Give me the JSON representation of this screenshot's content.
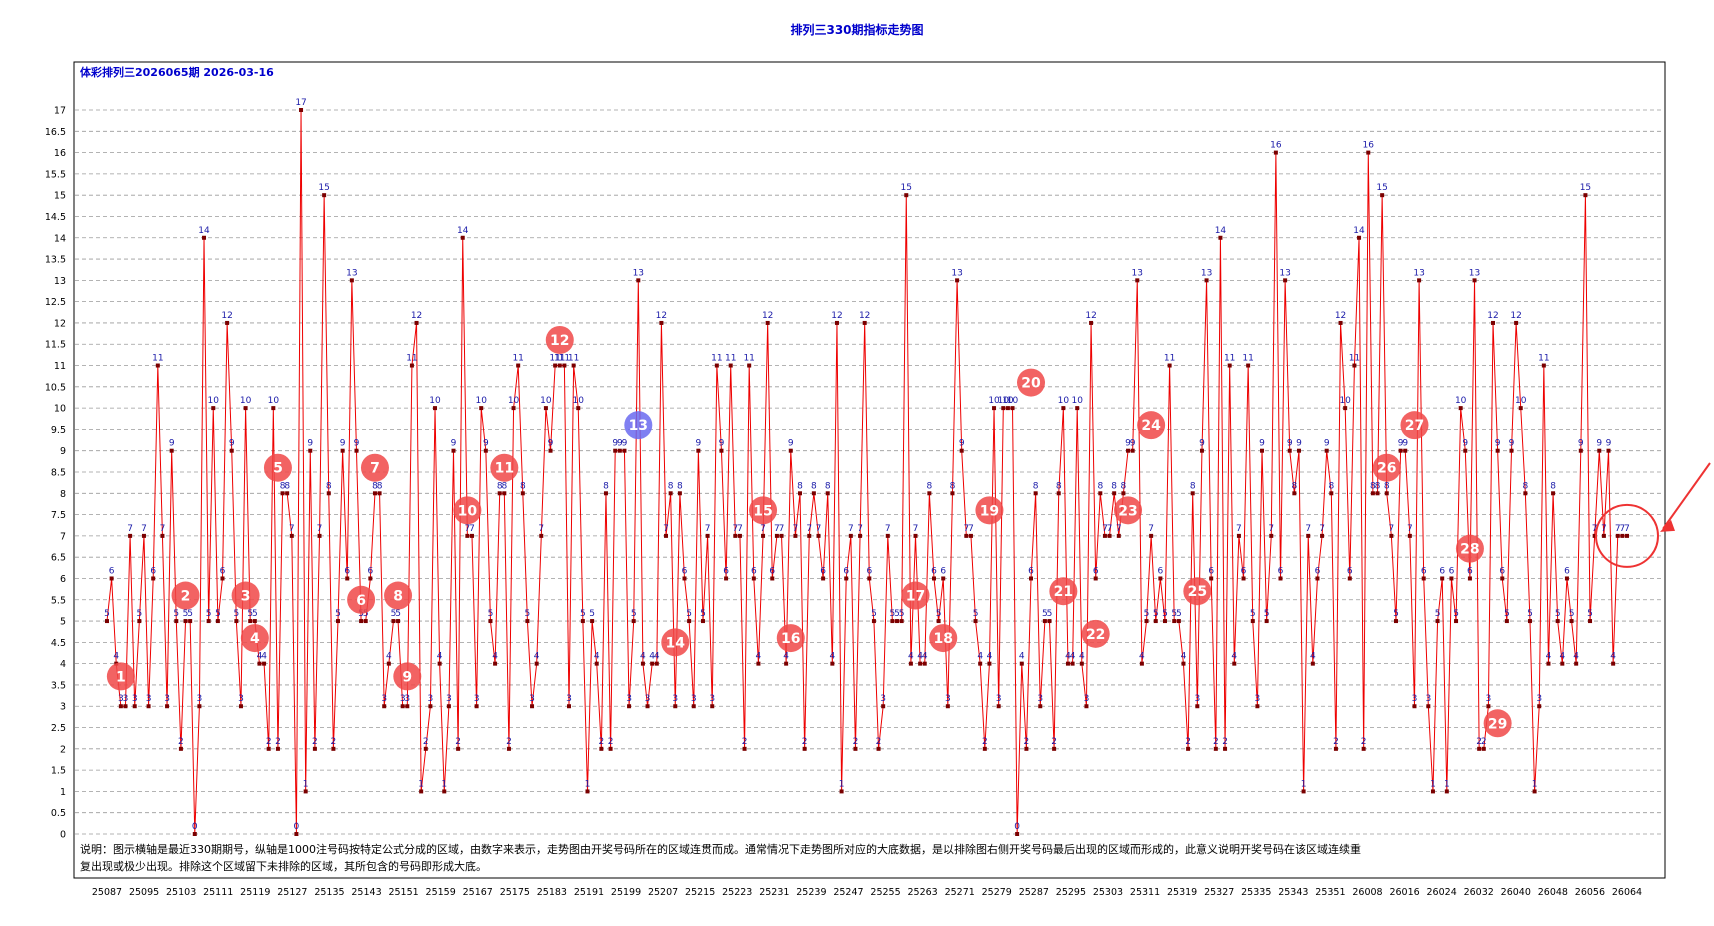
{
  "chart_data": {
    "type": "line",
    "title": "排列三330期指标走势图",
    "subtitle": "体彩排列三2026065期 2026-03-16",
    "ylim": [
      0,
      17
    ],
    "y_ticks": [
      "0",
      "0.5",
      "1",
      "1.5",
      "2",
      "2.5",
      "3",
      "3.5",
      "4",
      "4.5",
      "5",
      "5.5",
      "6",
      "6.5",
      "7",
      "7.5",
      "8",
      "8.5",
      "9",
      "9.5",
      "10",
      "10.5",
      "11",
      "11.5",
      "12",
      "12.5",
      "13",
      "13.5",
      "14",
      "14.5",
      "15",
      "15.5",
      "16",
      "16.5",
      "17"
    ],
    "x_tick_labels": [
      "25087",
      "25095",
      "25103",
      "25111",
      "25119",
      "25127",
      "25135",
      "25143",
      "25151",
      "25159",
      "25167",
      "25175",
      "25183",
      "25191",
      "25199",
      "25207",
      "25215",
      "25223",
      "25231",
      "25239",
      "25247",
      "25255",
      "25263",
      "25271",
      "25279",
      "25287",
      "25295",
      "25303",
      "25311",
      "25319",
      "25327",
      "25335",
      "25343",
      "25351",
      "26008",
      "26016",
      "26024",
      "26032",
      "26040",
      "26048",
      "26056",
      "26064"
    ],
    "grid": "horizontal-dashed",
    "series_color": "#ee0000",
    "values": [
      5,
      6,
      4,
      3,
      3,
      7,
      3,
      5,
      7,
      3,
      6,
      11,
      7,
      3,
      9,
      5,
      2,
      5,
      5,
      0,
      3,
      14,
      5,
      10,
      5,
      6,
      12,
      9,
      5,
      3,
      10,
      5,
      5,
      4,
      4,
      2,
      10,
      2,
      8,
      8,
      7,
      0,
      17,
      1,
      9,
      2,
      7,
      15,
      8,
      2,
      5,
      9,
      6,
      13,
      9,
      5,
      5,
      6,
      8,
      8,
      3,
      4,
      5,
      5,
      3,
      3,
      11,
      12,
      1,
      2,
      3,
      10,
      4,
      1,
      3,
      9,
      2,
      14,
      7,
      7,
      3,
      10,
      9,
      5,
      4,
      8,
      8,
      2,
      10,
      11,
      8,
      5,
      3,
      4,
      7,
      10,
      9,
      11,
      11,
      11,
      3,
      11,
      10,
      5,
      1,
      5,
      4,
      2,
      8,
      2,
      9,
      9,
      9,
      3,
      5,
      13,
      4,
      3,
      4,
      4,
      12,
      7,
      8,
      3,
      8,
      6,
      5,
      3,
      9,
      5,
      7,
      3,
      11,
      9,
      6,
      11,
      7,
      7,
      2,
      11,
      6,
      4,
      7,
      12,
      6,
      7,
      7,
      4,
      9,
      7,
      8,
      2,
      7,
      8,
      7,
      6,
      8,
      4,
      12,
      1,
      6,
      7,
      2,
      7,
      12,
      6,
      5,
      2,
      3,
      7,
      5,
      5,
      5,
      15,
      4,
      7,
      4,
      4,
      8,
      6,
      5,
      6,
      3,
      8,
      13,
      9,
      7,
      7,
      5,
      4,
      2,
      4,
      10,
      3,
      10,
      10,
      10,
      0,
      4,
      2,
      6,
      8,
      3,
      5,
      5,
      2,
      8,
      10,
      4,
      4,
      10,
      4,
      3,
      12,
      6,
      8,
      7,
      7,
      8,
      7,
      8,
      9,
      9,
      13,
      4,
      5,
      7,
      5,
      6,
      5,
      11,
      5,
      5,
      4,
      2,
      8,
      3,
      9,
      13,
      6,
      2,
      14,
      2,
      11,
      4,
      7,
      6,
      11,
      5,
      3,
      9,
      5,
      7,
      16,
      6,
      13,
      9,
      8,
      9,
      1,
      7,
      4,
      6,
      7,
      9,
      8,
      2,
      12,
      10,
      6,
      11,
      14,
      2,
      16,
      8,
      8,
      15,
      8,
      7,
      5,
      9,
      9,
      7,
      3,
      13,
      6,
      3,
      1,
      5,
      6,
      1,
      6,
      5,
      10,
      9,
      6,
      13,
      2,
      2,
      3,
      12,
      9,
      6,
      5,
      9,
      12,
      10,
      8,
      5,
      1,
      3,
      11,
      4,
      8,
      5,
      4,
      6,
      5,
      4,
      9,
      15,
      5,
      7,
      9,
      7,
      9,
      4,
      7,
      7,
      7
    ],
    "badges": [
      {
        "num": "1",
        "color": "#f04848",
        "xi": 3,
        "y": 3.7
      },
      {
        "num": "2",
        "color": "#f04848",
        "xi": 17,
        "y": 5.6
      },
      {
        "num": "3",
        "color": "#f04848",
        "xi": 30,
        "y": 5.6
      },
      {
        "num": "4",
        "color": "#f04848",
        "xi": 32,
        "y": 4.6
      },
      {
        "num": "5",
        "color": "#f04848",
        "xi": 37,
        "y": 8.6
      },
      {
        "num": "6",
        "color": "#f04848",
        "xi": 55,
        "y": 5.5
      },
      {
        "num": "7",
        "color": "#f04848",
        "xi": 58,
        "y": 8.6
      },
      {
        "num": "8",
        "color": "#f04848",
        "xi": 63,
        "y": 5.6
      },
      {
        "num": "9",
        "color": "#f04848",
        "xi": 65,
        "y": 3.7
      },
      {
        "num": "10",
        "color": "#f04848",
        "xi": 78,
        "y": 7.6
      },
      {
        "num": "11",
        "color": "#f04848",
        "xi": 86,
        "y": 8.6
      },
      {
        "num": "12",
        "color": "#f04848",
        "xi": 98,
        "y": 11.6
      },
      {
        "num": "13",
        "color": "#6a6af0",
        "xi": 115,
        "y": 9.6
      },
      {
        "num": "14",
        "color": "#f04848",
        "xi": 123,
        "y": 4.5
      },
      {
        "num": "15",
        "color": "#f04848",
        "xi": 142,
        "y": 7.6
      },
      {
        "num": "16",
        "color": "#f04848",
        "xi": 148,
        "y": 4.6
      },
      {
        "num": "17",
        "color": "#f04848",
        "xi": 175,
        "y": 5.6
      },
      {
        "num": "18",
        "color": "#f04848",
        "xi": 181,
        "y": 4.6
      },
      {
        "num": "19",
        "color": "#f04848",
        "xi": 191,
        "y": 7.6
      },
      {
        "num": "20",
        "color": "#f04848",
        "xi": 200,
        "y": 10.6
      },
      {
        "num": "21",
        "color": "#f04848",
        "xi": 207,
        "y": 5.7
      },
      {
        "num": "22",
        "color": "#f04848",
        "xi": 214,
        "y": 4.7
      },
      {
        "num": "23",
        "color": "#f04848",
        "xi": 221,
        "y": 7.6
      },
      {
        "num": "24",
        "color": "#f04848",
        "xi": 226,
        "y": 9.6
      },
      {
        "num": "25",
        "color": "#f04848",
        "xi": 236,
        "y": 5.7
      },
      {
        "num": "26",
        "color": "#f04848",
        "xi": 277,
        "y": 8.6
      },
      {
        "num": "27",
        "color": "#f04848",
        "xi": 283,
        "y": 9.6
      },
      {
        "num": "28",
        "color": "#f04848",
        "xi": 295,
        "y": 6.7
      },
      {
        "num": "29",
        "color": "#f04848",
        "xi": 301,
        "y": 2.6
      }
    ]
  },
  "note": {
    "line1": "说明：图示横轴是最近330期期号，纵轴是1000注号码按特定公式分成的区域，由数字来表示，走势图由开奖号码所在的区域连贯而成。通常情况下走势图所对应的大底数据，是以排除图右侧开奖号码最后出现的区域而形成的，此意义说明开奖号码在该区域连续重",
    "line2": "复出现或极少出现。排除这个区域留下未排除的区域，其所包含的号码即形成大底。"
  }
}
